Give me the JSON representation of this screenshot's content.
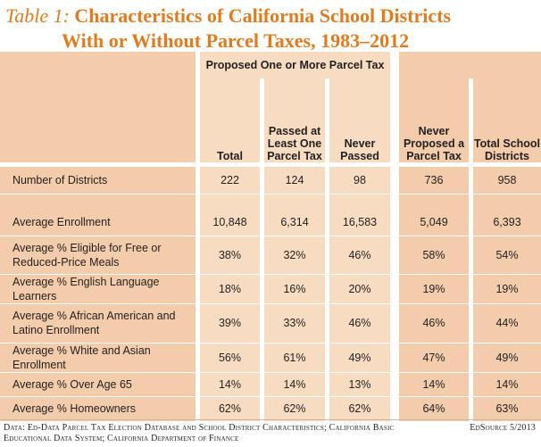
{
  "title": {
    "label": "Table 1:",
    "line1": "Characteristics of California School Districts",
    "line2": "With or Without Parcel Taxes, 1983–2012"
  },
  "header": {
    "group": "Proposed One or More Parcel Tax",
    "col_total": "Total",
    "col_passed": "Passed at Least One Parcel Tax",
    "col_never_passed": "Never Passed",
    "col_never_proposed": "Never Proposed a Parcel Tax",
    "col_total_districts": "Total School Districts"
  },
  "rows": [
    {
      "label": "Number of Districts",
      "values": [
        "222",
        "124",
        "98",
        "736",
        "958"
      ]
    },
    {
      "label": "Average Enrollment",
      "values": [
        "10,848",
        "6,314",
        "16,583",
        "5,049",
        "6,393"
      ]
    },
    {
      "label": "Average % Eligible for Free or Reduced-Price Meals",
      "values": [
        "38%",
        "32%",
        "46%",
        "58%",
        "54%"
      ]
    },
    {
      "label": "Average % English Language Learners",
      "values": [
        "18%",
        "16%",
        "20%",
        "19%",
        "19%"
      ]
    },
    {
      "label": "Average % African American and Latino Enrollment",
      "values": [
        "39%",
        "33%",
        "46%",
        "46%",
        "44%"
      ]
    },
    {
      "label": "Average % White and Asian Enrollment",
      "values": [
        "56%",
        "61%",
        "49%",
        "47%",
        "49%"
      ]
    },
    {
      "label": "Average % Over Age 65",
      "values": [
        "14%",
        "14%",
        "13%",
        "14%",
        "14%"
      ]
    },
    {
      "label": "Average % Homeowners",
      "values": [
        "62%",
        "62%",
        "62%",
        "64%",
        "63%"
      ]
    }
  ],
  "footer": {
    "source": "Data: Ed-Data Parcel Tax Election Database and School District Characteristics; California Basic Educational Data System; California Department of Finance",
    "credit": "EdSource 5/2013"
  },
  "colors": {
    "title": "#e07b1f",
    "row_light": "#f7dcc1",
    "row_dark": "#f3ccab"
  }
}
